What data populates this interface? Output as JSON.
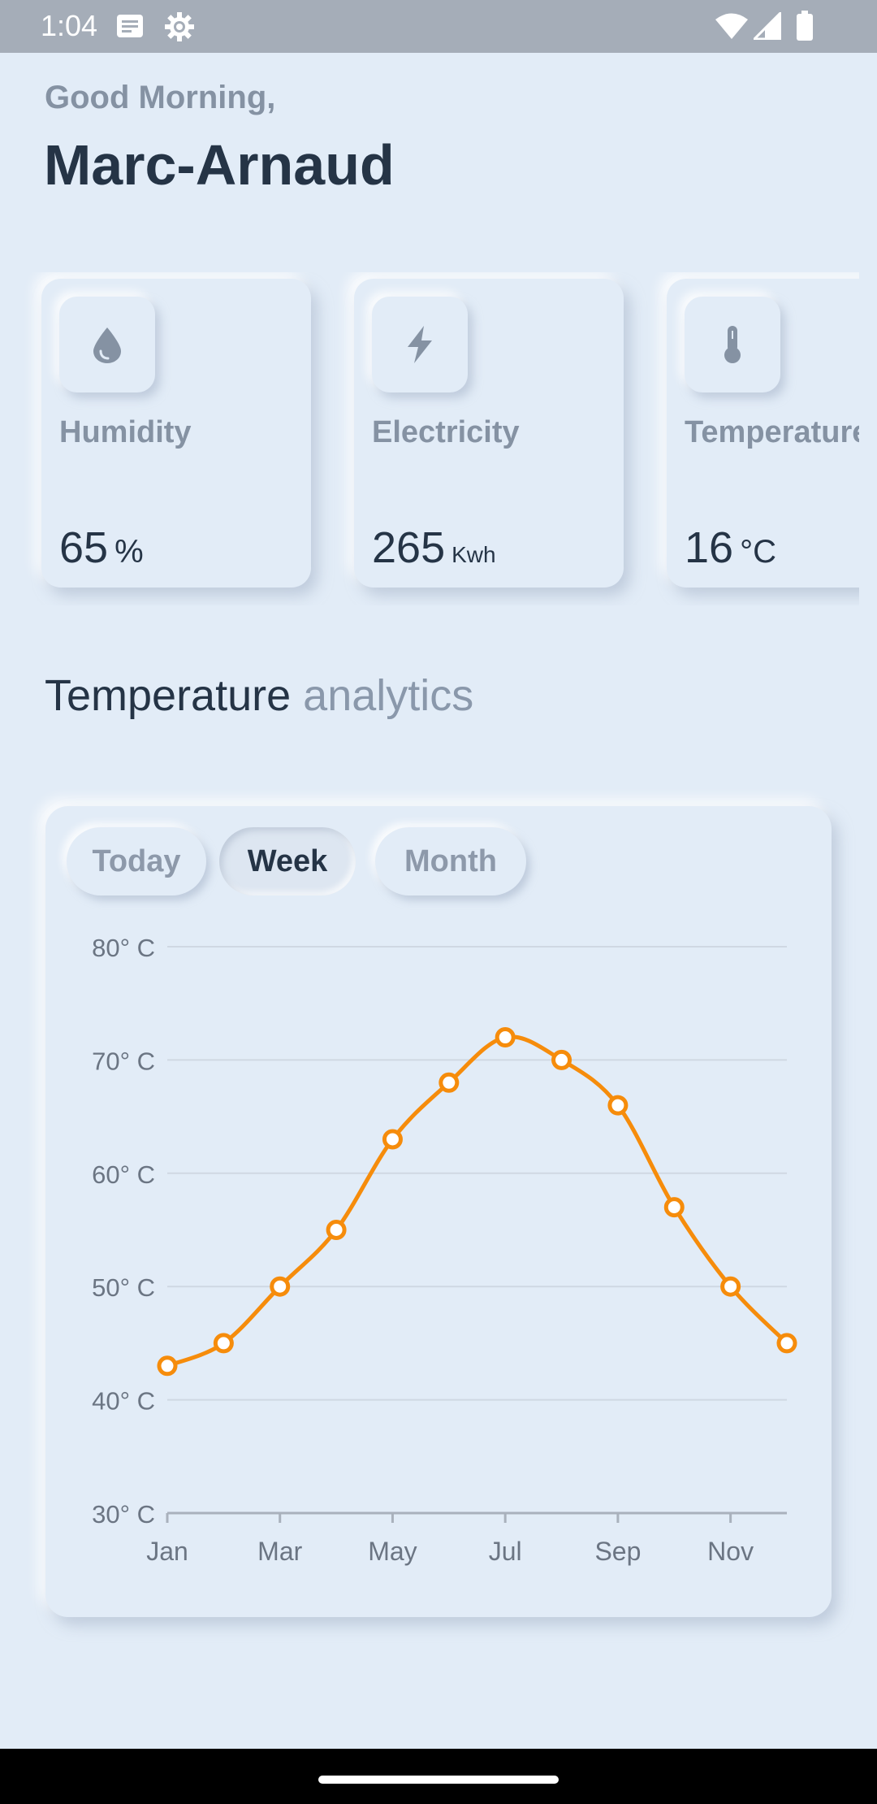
{
  "status_bar": {
    "time": "1:04",
    "left_icons": [
      "notes-icon",
      "gear-icon"
    ],
    "right_icons": [
      "wifi-icon",
      "signal-icon",
      "battery-icon"
    ]
  },
  "header": {
    "greeting": "Good Morning,",
    "user_name": "Marc-Arnaud"
  },
  "cards": [
    {
      "icon": "droplet-icon",
      "label": "Humidity",
      "value": "65",
      "unit": "%"
    },
    {
      "icon": "lightning-icon",
      "label": "Electricity",
      "value": "265",
      "unit": "Kwh"
    },
    {
      "icon": "thermometer-icon",
      "label": "Temperature",
      "value": "16",
      "unit": "°C"
    }
  ],
  "section": {
    "title_main": "Temperature",
    "title_muted": "analytics"
  },
  "tabs": [
    {
      "label": "Today",
      "active": false
    },
    {
      "label": "Week",
      "active": true
    },
    {
      "label": "Month",
      "active": false
    }
  ],
  "colors": {
    "background": "#e2ecf7",
    "accent_line": "#f68c0b",
    "muted_text": "#8592a3",
    "dark_text": "#253446"
  },
  "chart_data": {
    "type": "line",
    "x": [
      1,
      2,
      3,
      4,
      5,
      6,
      7,
      8,
      9,
      10,
      11,
      12
    ],
    "values": [
      43,
      45,
      50,
      55,
      63,
      68,
      72,
      70,
      66,
      57,
      50,
      45
    ],
    "x_tick_labels": [
      {
        "x": 1,
        "label": "Jan"
      },
      {
        "x": 3,
        "label": "Mar"
      },
      {
        "x": 5,
        "label": "May"
      },
      {
        "x": 7,
        "label": "Jul"
      },
      {
        "x": 9,
        "label": "Sep"
      },
      {
        "x": 11,
        "label": "Nov"
      }
    ],
    "y_ticks": [
      30,
      40,
      50,
      60,
      70,
      80
    ],
    "y_tick_labels": [
      "30° C",
      "40° C",
      "50° C",
      "60° C",
      "70° C",
      "80° C"
    ],
    "ylim": [
      30,
      80
    ],
    "xlim": [
      1,
      12
    ],
    "grid": true,
    "title": "",
    "xlabel": "",
    "ylabel": ""
  }
}
